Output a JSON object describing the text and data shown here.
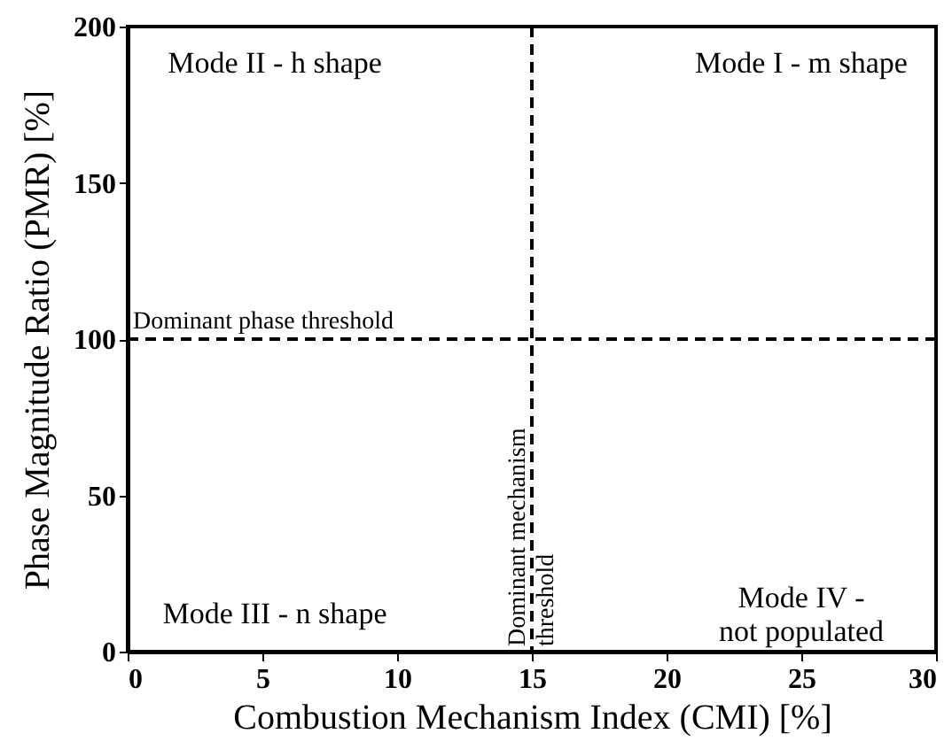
{
  "chart_data": {
    "type": "scatter",
    "xlabel": "Combustion Mechanism Index (CMI) [%]",
    "ylabel": "Phase Magnitude Ratio (PMR) [%]",
    "xlim": [
      0,
      30
    ],
    "xticks": [
      0,
      5,
      10,
      15,
      20,
      25,
      30
    ],
    "ylim": [
      0,
      200
    ],
    "yticks": [
      0,
      50,
      100,
      150,
      200
    ],
    "ref_lines": [
      {
        "axis": "y",
        "value": 100,
        "label": "Dominant phase threshold",
        "color": "#000000",
        "line_style": "dashed"
      },
      {
        "axis": "x",
        "value": 15,
        "label": "Dominant mechanism\nthreshold",
        "color": "#000000",
        "line_style": "dashed"
      }
    ],
    "annotations": [
      "Mode II - h shape",
      "Mode I - m shape",
      "Mode III - n shape",
      "Mode IV -\nnot populated"
    ]
  }
}
